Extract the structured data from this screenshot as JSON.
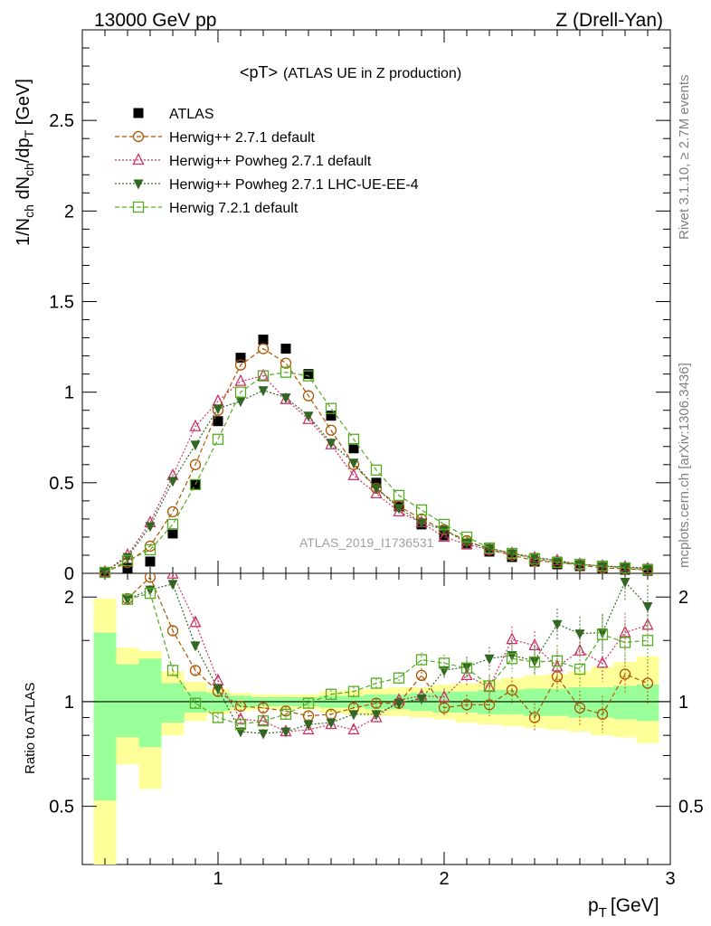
{
  "header": {
    "left": "13000 GeV pp",
    "right": "Z (Drell-Yan)"
  },
  "side_labels": {
    "rivet": "Rivet 3.1.10, ≥ 2.7M events",
    "mcplots": "mcplots.cern.ch [arXiv:1306.3436]"
  },
  "chart_data": {
    "type": "scatter",
    "title": "<pT> (ATLAS UE in Z production)",
    "title_parts": {
      "main": "<pT>",
      "sub": "(ATLAS UE in Z production)"
    },
    "watermark": "ATLAS_2019_I1736531",
    "xlabel": "p_T [GeV]",
    "xlabel_parts": {
      "p": "p",
      "sub": "T",
      "unit": "[GeV]"
    },
    "ylabel": "1/N_ch dN_ch/dp_T [GeV]",
    "ratio_ylabel": "Ratio to ATLAS",
    "xlim": [
      0.4,
      3.0
    ],
    "ylim": [
      0,
      3.0
    ],
    "ratio_ylim": [
      0.34,
      2.34
    ],
    "xticks": [
      1,
      2,
      3
    ],
    "xtick_labels": [
      "1",
      "2",
      "3"
    ],
    "yticks": [
      0,
      0.5,
      1,
      1.5,
      2,
      2.5
    ],
    "ytick_labels": [
      "0",
      "0.5",
      "1",
      "1.5",
      "2",
      "2.5"
    ],
    "ratio_yticks": [
      0.5,
      1,
      2
    ],
    "ratio_ytick_labels": [
      "0.5",
      "1",
      "2"
    ],
    "x": [
      0.5,
      0.6,
      0.7,
      0.8,
      0.9,
      1.0,
      1.1,
      1.2,
      1.3,
      1.4,
      1.5,
      1.6,
      1.7,
      1.8,
      1.9,
      2.0,
      2.1,
      2.2,
      2.3,
      2.4,
      2.5,
      2.6,
      2.7,
      2.8,
      2.9
    ],
    "series": [
      {
        "name": "ATLAS",
        "color": "#000000",
        "marker": "filled-square",
        "line": "none",
        "values": [
          0.005,
          0.03,
          0.065,
          0.22,
          0.49,
          0.84,
          1.19,
          1.29,
          1.24,
          1.1,
          0.87,
          0.69,
          0.5,
          0.37,
          0.27,
          0.21,
          0.16,
          0.12,
          0.09,
          0.065,
          0.05,
          0.04,
          0.03,
          0.02,
          0.014
        ]
      },
      {
        "name": "Herwig++ 2.7.1 default",
        "color": "#aa5500",
        "marker": "open-circle",
        "line": "dashed",
        "values": [
          0.006,
          0.06,
          0.15,
          0.34,
          0.6,
          0.9,
          1.15,
          1.24,
          1.16,
          0.98,
          0.79,
          0.6,
          0.47,
          0.37,
          0.3,
          0.24,
          0.18,
          0.13,
          0.1,
          0.07,
          0.06,
          0.045,
          0.03,
          0.025,
          0.018
        ]
      },
      {
        "name": "Herwig++ Powheg 2.7.1 default",
        "color": "#cc3366",
        "marker": "open-triangle-up",
        "line": "dotted",
        "values": [
          0.007,
          0.1,
          0.28,
          0.54,
          0.81,
          0.95,
          1.06,
          1.09,
          0.96,
          0.85,
          0.71,
          0.54,
          0.44,
          0.34,
          0.28,
          0.2,
          0.16,
          0.13,
          0.11,
          0.085,
          0.07,
          0.05,
          0.04,
          0.035,
          0.025
        ]
      },
      {
        "name": "Herwig++ Powheg 2.7.1 LHC-UE-EE-4",
        "color": "#336622",
        "marker": "filled-triangle-down",
        "line": "dotted",
        "values": [
          0.008,
          0.09,
          0.26,
          0.51,
          0.71,
          0.91,
          0.95,
          1.01,
          0.97,
          0.87,
          0.72,
          0.61,
          0.47,
          0.36,
          0.28,
          0.24,
          0.17,
          0.14,
          0.11,
          0.09,
          0.07,
          0.05,
          0.04,
          0.035,
          0.03
        ]
      },
      {
        "name": "Herwig 7.2.1 default",
        "color": "#55aa22",
        "marker": "open-square",
        "line": "dashed",
        "values": [
          0.005,
          0.07,
          0.13,
          0.27,
          0.49,
          0.74,
          1.0,
          1.09,
          1.11,
          1.09,
          0.91,
          0.74,
          0.57,
          0.43,
          0.35,
          0.27,
          0.2,
          0.14,
          0.11,
          0.08,
          0.06,
          0.05,
          0.04,
          0.03,
          0.02
        ]
      }
    ],
    "ratio_series": [
      {
        "name": "Herwig++ 2.7.1 default",
        "values": [
          null,
          1.98,
          2.28,
          1.6,
          1.23,
          1.07,
          0.97,
          0.96,
          0.94,
          0.91,
          0.92,
          0.96,
          0.99,
          0.99,
          1.19,
          0.96,
          0.98,
          0.98,
          1.08,
          0.9,
          1.18,
          0.96,
          0.92,
          1.2,
          1.13
        ]
      },
      {
        "name": "Herwig++ Powheg 2.7.1 default",
        "values": [
          null,
          null,
          null,
          2.33,
          1.69,
          1.15,
          0.89,
          0.88,
          0.82,
          0.83,
          0.86,
          0.83,
          0.9,
          1.01,
          1.04,
          1.03,
          1.19,
          1.1,
          1.51,
          1.45,
          1.26,
          1.4,
          1.29,
          1.58,
          1.66
        ]
      },
      {
        "name": "Herwig++ Powheg 2.7.1 LHC-UE-EE-4",
        "values": [
          null,
          1.97,
          2.1,
          2.18,
          1.45,
          1.09,
          0.82,
          0.81,
          0.82,
          0.86,
          0.87,
          0.92,
          0.92,
          0.99,
          1.02,
          1.23,
          1.26,
          1.33,
          1.36,
          1.31,
          1.67,
          1.57,
          1.58,
          2.21,
          1.88
        ]
      },
      {
        "name": "Herwig 7.2.1 default",
        "values": [
          null,
          1.97,
          2.05,
          1.23,
          0.99,
          0.9,
          0.86,
          0.88,
          0.92,
          0.99,
          1.05,
          1.07,
          1.13,
          1.17,
          1.32,
          1.29,
          1.25,
          1.11,
          1.33,
          1.3,
          1.31,
          1.24,
          1.56,
          1.48,
          1.5
        ]
      }
    ],
    "uncertainty_band": {
      "edges": [
        0.45,
        0.55,
        0.65,
        0.75,
        0.85,
        0.95,
        1.05,
        1.15,
        1.25,
        1.35,
        1.45,
        1.55,
        1.65,
        1.75,
        1.85,
        1.95,
        2.05,
        2.15,
        2.25,
        2.35,
        2.45,
        2.55,
        2.65,
        2.75,
        2.85,
        2.95
      ],
      "stat_lo": [
        0.52,
        0.79,
        0.74,
        0.87,
        0.93,
        0.94,
        0.96,
        0.97,
        0.97,
        0.97,
        0.96,
        0.96,
        0.95,
        0.95,
        0.94,
        0.93,
        0.93,
        0.92,
        0.92,
        0.91,
        0.91,
        0.9,
        0.9,
        0.89,
        0.88
      ],
      "stat_hi": [
        1.58,
        1.28,
        1.33,
        1.13,
        1.07,
        1.06,
        1.04,
        1.03,
        1.03,
        1.03,
        1.04,
        1.04,
        1.05,
        1.05,
        1.06,
        1.07,
        1.07,
        1.08,
        1.08,
        1.09,
        1.09,
        1.1,
        1.1,
        1.11,
        1.12
      ],
      "syst_lo": [
        0.3,
        0.66,
        0.56,
        0.8,
        0.88,
        0.92,
        0.94,
        0.95,
        0.95,
        0.95,
        0.93,
        0.92,
        0.91,
        0.91,
        0.9,
        0.89,
        0.87,
        0.86,
        0.85,
        0.84,
        0.83,
        0.82,
        0.8,
        0.79,
        0.76
      ],
      "syst_hi": [
        1.98,
        1.43,
        1.4,
        1.22,
        1.14,
        1.09,
        1.06,
        1.05,
        1.05,
        1.05,
        1.07,
        1.08,
        1.09,
        1.1,
        1.1,
        1.12,
        1.13,
        1.15,
        1.17,
        1.19,
        1.2,
        1.22,
        1.26,
        1.3,
        1.35
      ],
      "stat_color": "#99ff99",
      "syst_color": "#ffff99"
    }
  }
}
